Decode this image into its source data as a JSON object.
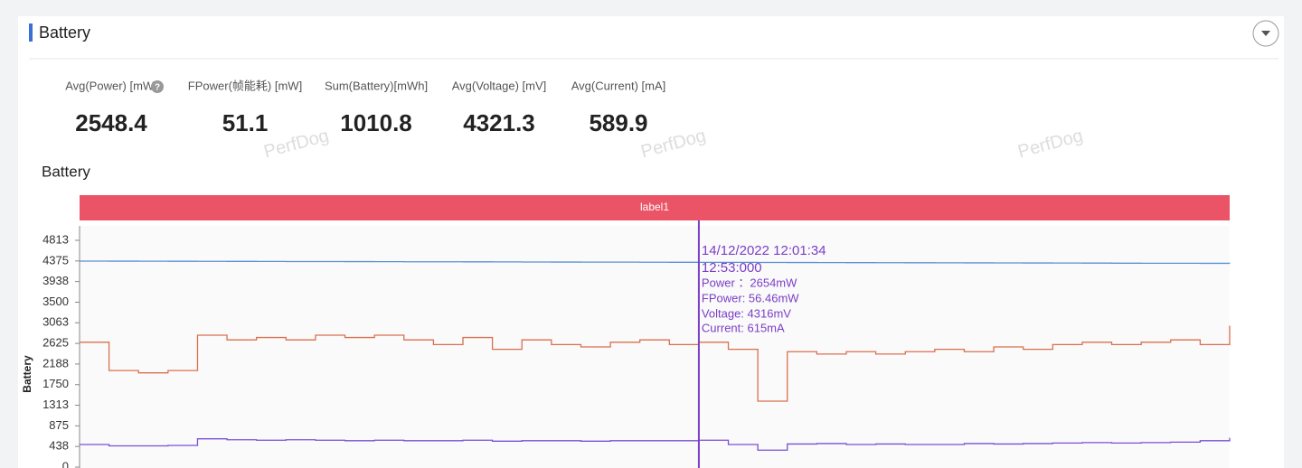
{
  "header": {
    "title": "Battery"
  },
  "stats": [
    {
      "label": "Avg(Power) [mW]",
      "value": 2548.4
    },
    {
      "label": "FPower(帧能耗) [mW]",
      "value": 51.1
    },
    {
      "label": "Sum(Battery)[mWh]",
      "value": 1010.8
    },
    {
      "label": "Avg(Voltage) [mV]",
      "value": 4321.3
    },
    {
      "label": "Avg(Current) [mA]",
      "value": 589.9
    }
  ],
  "watermarks": [
    "PerfDog",
    "PerfDog",
    "PerfDog"
  ],
  "chart_data": {
    "type": "line",
    "title": "Battery",
    "y_label": "Battery",
    "band_label": "label1",
    "categories": [
      null,
      null,
      null,
      null,
      null,
      null,
      null,
      null,
      null,
      null,
      null,
      null,
      null,
      null,
      null,
      null,
      null,
      null,
      null,
      null,
      null,
      null,
      null,
      null,
      null,
      null,
      null,
      null,
      null,
      null,
      null,
      null,
      null,
      null,
      null,
      null,
      null,
      null,
      null,
      null
    ],
    "series": [
      {
        "color": "#5b8fd6",
        "values": [
          4372,
          4371,
          4370,
          4368,
          4367,
          4366,
          4365,
          4363,
          4362,
          4361,
          4360,
          4358,
          4357,
          4356,
          4355,
          4353,
          4352,
          4351,
          4350,
          4348,
          4347,
          4346,
          4345,
          4343,
          4342,
          4341,
          4340,
          4338,
          4337,
          4336,
          4335,
          4333,
          4332,
          4331,
          4330,
          4328,
          4327,
          4326,
          4325,
          4323
        ]
      },
      {
        "color": "#d9704f",
        "values": [
          2650,
          2050,
          2000,
          2050,
          2800,
          2700,
          2750,
          2700,
          2800,
          2750,
          2800,
          2700,
          2600,
          2750,
          2500,
          2700,
          2600,
          2550,
          2650,
          2700,
          2600,
          2650,
          2500,
          1400,
          2450,
          2400,
          2450,
          2400,
          2450,
          2500,
          2450,
          2550,
          2500,
          2600,
          2650,
          2600,
          2650,
          2700,
          2600,
          3000
        ]
      },
      {
        "color": "#7b4fd6",
        "values": [
          480,
          450,
          450,
          460,
          600,
          580,
          570,
          580,
          570,
          560,
          570,
          560,
          560,
          570,
          550,
          560,
          560,
          550,
          560,
          560,
          560,
          570,
          480,
          360,
          490,
          500,
          480,
          490,
          480,
          480,
          500,
          490,
          500,
          510,
          520,
          510,
          520,
          530,
          560,
          620
        ]
      }
    ],
    "ylim": [
      0,
      4813
    ],
    "yticks": [
      0,
      438,
      875,
      1313,
      1750,
      2188,
      2625,
      3063,
      3500,
      3938,
      4375,
      4813
    ],
    "grid": false,
    "cursor_index": 21,
    "tooltip": [
      "14/12/2022 12:01:34",
      "12:53:000",
      "Power ：2654mW",
      "FPower: 56.46mW",
      "Voltage: 4316mV",
      "Current: 615mA"
    ]
  }
}
